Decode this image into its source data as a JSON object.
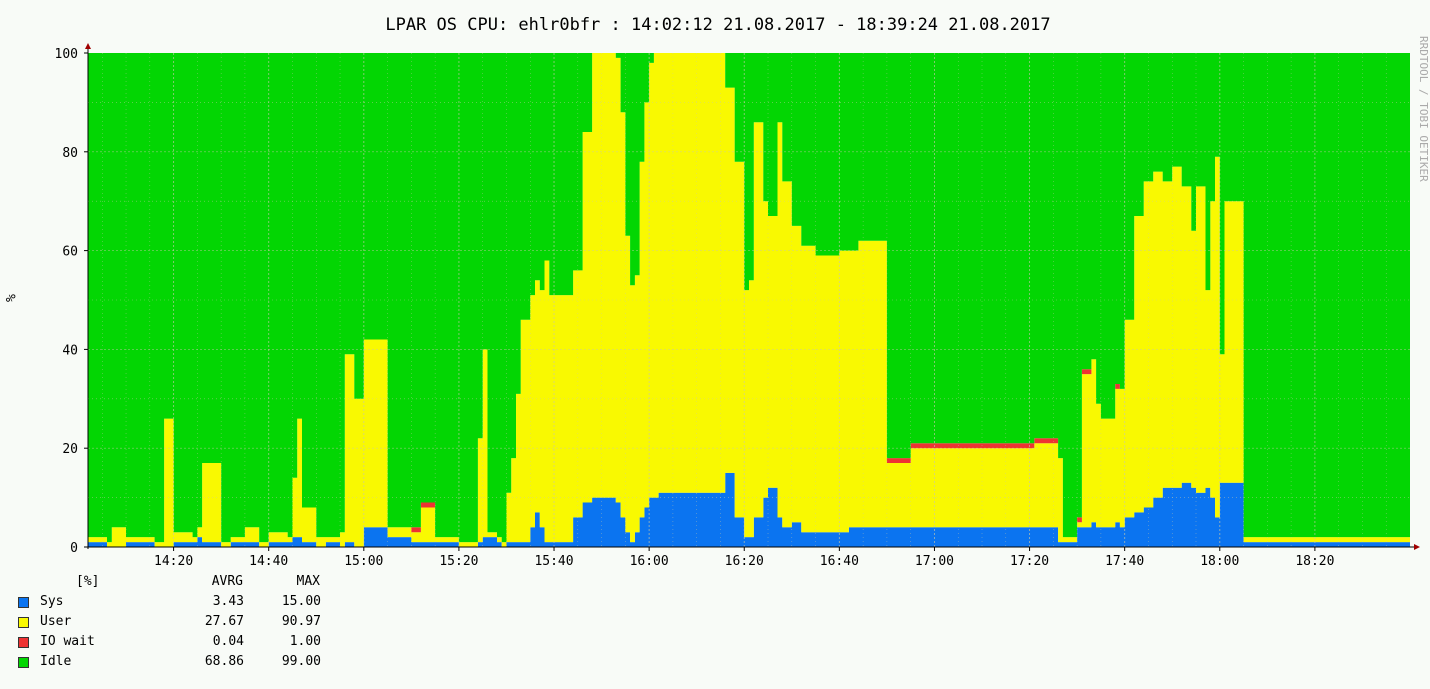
{
  "title": "LPAR OS CPU: ehlr0bfr : 14:02:12 21.08.2017 - 18:39:24 21.08.2017",
  "watermark": "RRDTOOL / TOBI OETIKER",
  "ylabel": "%",
  "colors": {
    "sys": "#0b74f0",
    "user": "#f9f901",
    "iowait": "#ee3333",
    "idle": "#03d603",
    "grid": "#c8c8a8",
    "axis": "#000000",
    "arrow": "#a00000"
  },
  "legend": {
    "unit": "[%]",
    "col_avg": "AVRG",
    "col_max": "MAX",
    "rows": [
      {
        "label": "Sys",
        "avg": "3.43",
        "max": "15.00",
        "color": "#0b74f0"
      },
      {
        "label": "User",
        "avg": "27.67",
        "max": "90.97",
        "color": "#f9f901"
      },
      {
        "label": "IO wait",
        "avg": "0.04",
        "max": "1.00",
        "color": "#ee3333"
      },
      {
        "label": "Idle",
        "avg": "68.86",
        "max": "99.00",
        "color": "#03d603"
      }
    ]
  },
  "chart_data": {
    "type": "area",
    "stacked": true,
    "ylim": [
      0,
      100
    ],
    "yticks": [
      0,
      20,
      40,
      60,
      80,
      100
    ],
    "xlim": [
      "14:02",
      "18:40"
    ],
    "xticks": [
      "14:20",
      "14:40",
      "15:00",
      "15:20",
      "15:40",
      "16:00",
      "16:20",
      "16:40",
      "17:00",
      "17:20",
      "17:40",
      "18:00",
      "18:20"
    ],
    "grid": true,
    "x": [
      "14:02",
      "14:06",
      "14:07",
      "14:10",
      "14:16",
      "14:17",
      "14:18",
      "14:20",
      "14:24",
      "14:25",
      "14:26",
      "14:30",
      "14:32",
      "14:35",
      "14:38",
      "14:40",
      "14:44",
      "14:45",
      "14:46",
      "14:47",
      "14:50",
      "14:52",
      "14:55",
      "14:56",
      "14:58",
      "15:00",
      "15:05",
      "15:10",
      "15:12",
      "15:15",
      "15:20",
      "15:23",
      "15:24",
      "15:25",
      "15:26",
      "15:28",
      "15:29",
      "15:30",
      "15:31",
      "15:32",
      "15:33",
      "15:35",
      "15:36",
      "15:37",
      "15:38",
      "15:39",
      "15:40",
      "15:42",
      "15:44",
      "15:46",
      "15:48",
      "15:50",
      "15:52",
      "15:53",
      "15:54",
      "15:55",
      "15:56",
      "15:57",
      "15:58",
      "15:59",
      "16:00",
      "16:01",
      "16:02",
      "16:05",
      "16:10",
      "16:15",
      "16:16",
      "16:18",
      "16:20",
      "16:21",
      "16:22",
      "16:24",
      "16:25",
      "16:27",
      "16:28",
      "16:30",
      "16:32",
      "16:35",
      "16:38",
      "16:40",
      "16:42",
      "16:44",
      "16:45",
      "16:50",
      "16:55",
      "17:00",
      "17:05",
      "17:10",
      "17:15",
      "17:20",
      "17:21",
      "17:22",
      "17:25",
      "17:26",
      "17:27",
      "17:28",
      "17:30",
      "17:31",
      "17:33",
      "17:34",
      "17:35",
      "17:36",
      "17:38",
      "17:39",
      "17:40",
      "17:42",
      "17:44",
      "17:46",
      "17:48",
      "17:50",
      "17:52",
      "17:54",
      "17:55",
      "17:57",
      "17:58",
      "17:59",
      "18:00",
      "18:01",
      "18:05",
      "18:10",
      "18:20",
      "18:30",
      "18:39"
    ],
    "series": [
      {
        "name": "Sys",
        "values": [
          1,
          0,
          0,
          1,
          0,
          0,
          0,
          1,
          1,
          2,
          1,
          0,
          1,
          1,
          0,
          1,
          1,
          2,
          2,
          1,
          0,
          1,
          0,
          1,
          0,
          4,
          2,
          1,
          1,
          1,
          0,
          0,
          1,
          2,
          2,
          1,
          0,
          1,
          1,
          1,
          1,
          4,
          7,
          4,
          1,
          1,
          1,
          1,
          6,
          9,
          10,
          10,
          10,
          9,
          6,
          3,
          1,
          3,
          6,
          8,
          10,
          10,
          11,
          11,
          11,
          11,
          15,
          6,
          2,
          2,
          6,
          10,
          12,
          6,
          4,
          5,
          3,
          3,
          3,
          3,
          4,
          4,
          4,
          4,
          4,
          4,
          4,
          4,
          4,
          4,
          4,
          4,
          4,
          1,
          1,
          1,
          4,
          4,
          5,
          4,
          4,
          4,
          5,
          4,
          6,
          7,
          8,
          10,
          12,
          12,
          13,
          12,
          11,
          12,
          10,
          6,
          13,
          13,
          1,
          1,
          1,
          1,
          1
        ]
      },
      {
        "name": "User",
        "values": [
          1,
          1,
          4,
          1,
          1,
          1,
          26,
          2,
          1,
          2,
          16,
          1,
          1,
          3,
          1,
          2,
          1,
          12,
          24,
          7,
          2,
          1,
          3,
          38,
          30,
          38,
          2,
          2,
          7,
          1,
          1,
          1,
          21,
          38,
          1,
          1,
          1,
          10,
          17,
          30,
          45,
          47,
          47,
          48,
          57,
          50,
          50,
          50,
          50,
          75,
          90,
          90,
          90,
          90,
          82,
          60,
          52,
          52,
          72,
          82,
          88,
          90,
          89,
          89,
          89,
          89,
          78,
          72,
          50,
          52,
          80,
          60,
          55,
          80,
          70,
          60,
          58,
          56,
          56,
          57,
          56,
          58,
          58,
          13,
          16,
          16,
          16,
          16,
          16,
          16,
          17,
          17,
          17,
          17,
          1,
          1,
          1,
          31,
          33,
          25,
          22,
          22,
          27,
          28,
          40,
          60,
          66,
          66,
          62,
          65,
          60,
          52,
          62,
          40,
          60,
          73,
          26,
          57,
          1,
          1,
          1,
          1,
          1
        ]
      },
      {
        "name": "IO wait",
        "values": [
          0,
          0,
          0,
          0,
          0,
          0,
          0,
          0,
          0,
          0,
          0,
          0,
          0,
          0,
          0,
          0,
          0,
          0,
          0,
          0,
          0,
          0,
          0,
          0,
          0,
          0,
          0,
          1,
          1,
          0,
          0,
          0,
          0,
          0,
          0,
          0,
          0,
          0,
          0,
          0,
          0,
          0,
          0,
          0,
          0,
          0,
          0,
          0,
          0,
          0,
          0,
          0,
          0,
          0,
          0,
          0,
          0,
          0,
          0,
          0,
          0,
          0,
          0,
          0,
          0,
          0,
          0,
          0,
          0,
          0,
          0,
          0,
          0,
          0,
          0,
          0,
          0,
          0,
          0,
          0,
          0,
          0,
          0,
          1,
          1,
          1,
          1,
          1,
          1,
          1,
          1,
          1,
          1,
          0,
          0,
          0,
          1,
          1,
          0,
          0,
          0,
          0,
          1,
          0,
          0,
          0,
          0,
          0,
          0,
          0,
          0,
          0,
          0,
          0,
          0,
          0,
          0,
          0,
          0,
          0,
          0,
          0,
          0
        ]
      },
      {
        "name": "Idle",
        "values": [
          98,
          99,
          96,
          98,
          99,
          99,
          74,
          97,
          98,
          96,
          83,
          99,
          98,
          96,
          99,
          97,
          98,
          86,
          74,
          92,
          98,
          98,
          97,
          61,
          70,
          58,
          96,
          96,
          91,
          98,
          99,
          99,
          78,
          60,
          97,
          98,
          99,
          89,
          82,
          69,
          54,
          49,
          46,
          48,
          42,
          49,
          49,
          49,
          44,
          16,
          0,
          0,
          0,
          1,
          12,
          37,
          47,
          45,
          22,
          10,
          2,
          0,
          0,
          0,
          0,
          0,
          7,
          22,
          48,
          46,
          14,
          30,
          33,
          14,
          26,
          35,
          39,
          41,
          41,
          40,
          40,
          38,
          38,
          82,
          79,
          79,
          79,
          79,
          79,
          79,
          78,
          78,
          78,
          82,
          99,
          99,
          94,
          64,
          62,
          71,
          74,
          74,
          67,
          68,
          54,
          33,
          26,
          24,
          26,
          23,
          27,
          36,
          27,
          48,
          30,
          21,
          61,
          30,
          98,
          99,
          99,
          99,
          99
        ]
      }
    ]
  }
}
